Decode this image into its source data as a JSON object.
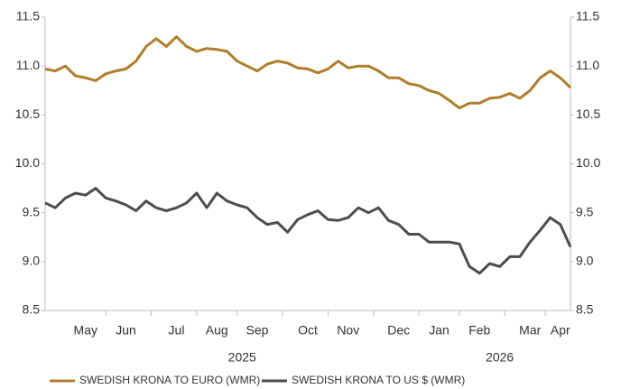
{
  "chart_data": {
    "type": "line",
    "categories": [
      null,
      null,
      null,
      null,
      "May",
      null,
      null,
      null,
      "Jun",
      null,
      null,
      null,
      null,
      "Jul",
      null,
      null,
      null,
      "Aug",
      null,
      null,
      null,
      "Sep",
      null,
      null,
      null,
      null,
      "Oct",
      null,
      null,
      null,
      "Nov",
      null,
      null,
      null,
      null,
      "Dec",
      null,
      null,
      null,
      "Jan",
      null,
      null,
      null,
      "Feb",
      null,
      null,
      null,
      null,
      "Mar",
      null,
      null,
      "Apr",
      null
    ],
    "year_labels": [
      "2025",
      "2026"
    ],
    "series": [
      {
        "name": "SWEDISH KRONA TO EURO (WMR)",
        "color": "#b07d2a",
        "values": [
          10.97,
          10.95,
          11.0,
          10.9,
          10.88,
          10.85,
          10.92,
          10.95,
          10.97,
          11.05,
          11.2,
          11.28,
          11.2,
          11.3,
          11.2,
          11.15,
          11.18,
          11.17,
          11.15,
          11.05,
          11.0,
          10.95,
          11.02,
          11.05,
          11.03,
          10.98,
          10.97,
          10.93,
          10.97,
          11.05,
          10.98,
          11.0,
          11.0,
          10.95,
          10.88,
          10.88,
          10.82,
          10.8,
          10.75,
          10.72,
          10.65,
          10.57,
          10.62,
          10.62,
          10.67,
          10.68,
          10.72,
          10.67,
          10.75,
          10.88,
          10.95,
          10.88,
          10.78
        ]
      },
      {
        "name": "SWEDISH KRONA TO US $ (WMR)",
        "color": "#4d4d4d",
        "values": [
          9.6,
          9.55,
          9.65,
          9.7,
          9.68,
          9.75,
          9.65,
          9.62,
          9.58,
          9.52,
          9.62,
          9.55,
          9.52,
          9.55,
          9.6,
          9.7,
          9.55,
          9.7,
          9.62,
          9.58,
          9.55,
          9.45,
          9.38,
          9.4,
          9.3,
          9.43,
          9.48,
          9.52,
          9.43,
          9.42,
          9.45,
          9.55,
          9.5,
          9.55,
          9.42,
          9.38,
          9.28,
          9.28,
          9.2,
          9.2,
          9.2,
          9.18,
          8.95,
          8.88,
          8.98,
          8.95,
          9.05,
          9.05,
          9.2,
          9.32,
          9.45,
          9.38,
          9.15
        ]
      }
    ],
    "ylim": [
      8.5,
      11.5
    ],
    "yticks": [
      8.5,
      {
        "value": 9,
        "label": "9.0"
      },
      9.5,
      {
        "value": 10,
        "label": "10.0"
      },
      10.5,
      {
        "value": 11,
        "label": "11.0"
      },
      11.5
    ],
    "y2lim": [
      8.5,
      11.5
    ],
    "y2ticks": [
      8.5,
      {
        "value": 9,
        "label": "9.0"
      },
      9.5,
      {
        "value": 10,
        "label": "10.0"
      },
      10.5,
      {
        "value": 11,
        "label": "11.0"
      },
      11.5
    ],
    "legend": "bottom"
  }
}
